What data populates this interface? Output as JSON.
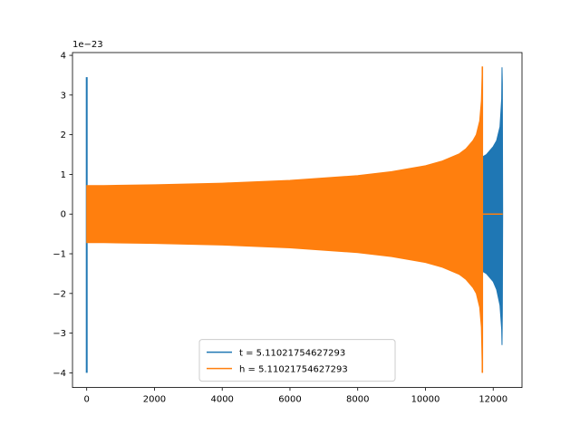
{
  "chart_data": {
    "type": "line",
    "title": "",
    "xlabel": "",
    "ylabel": "",
    "y_offset_text": "1e−23",
    "xlim": [
      -420,
      12850
    ],
    "ylim": [
      -4.37,
      4.07
    ],
    "y_scale_exponent": -23,
    "grid": false,
    "legend_position": "lower center",
    "x_ticks": [
      0,
      2000,
      4000,
      6000,
      8000,
      10000,
      12000
    ],
    "x_tick_labels": [
      "0",
      "2000",
      "4000",
      "6000",
      "8000",
      "10000",
      "12000"
    ],
    "y_ticks": [
      -4,
      -3,
      -2,
      -1,
      0,
      1,
      2,
      3,
      4
    ],
    "y_tick_labels": [
      "−4",
      "−3",
      "−2",
      "−1",
      "0",
      "1",
      "2",
      "3",
      "4"
    ],
    "series": [
      {
        "name": "t = 5.11021754627293",
        "color": "#1f77b4",
        "envelope": {
          "x": [
            0,
            11680,
            11700,
            11800,
            11900,
            12000,
            12100,
            12200,
            12250,
            12260,
            12270,
            12280,
            12290
          ],
          "upper": [
            0.7,
            0.7,
            1.45,
            1.5,
            1.6,
            1.7,
            1.85,
            2.2,
            2.9,
            3.7,
            3.3,
            0,
            0
          ],
          "lower": [
            -0.7,
            -0.7,
            -1.45,
            -1.5,
            -1.6,
            -1.7,
            -1.9,
            -2.3,
            -2.9,
            -3.3,
            -2.5,
            0,
            0
          ]
        },
        "spike": {
          "x": 0,
          "max": 3.45,
          "min": -4.0
        }
      },
      {
        "name": "h = 5.11021754627293",
        "color": "#ff7f0e",
        "envelope": {
          "x": [
            0,
            500,
            2000,
            4000,
            6000,
            8000,
            9000,
            10000,
            10500,
            11000,
            11200,
            11400,
            11500,
            11600,
            11650,
            11680
          ],
          "upper": [
            0.72,
            0.72,
            0.74,
            0.78,
            0.85,
            0.97,
            1.07,
            1.22,
            1.34,
            1.52,
            1.65,
            1.85,
            2.0,
            2.35,
            2.85,
            3.72
          ],
          "lower": [
            -0.72,
            -0.72,
            -0.74,
            -0.78,
            -0.85,
            -0.97,
            -1.07,
            -1.22,
            -1.34,
            -1.52,
            -1.65,
            -1.85,
            -2.0,
            -2.35,
            -2.85,
            -4.0
          ]
        },
        "flat_after": {
          "x": [
            11680,
            12280
          ],
          "y": 0
        }
      }
    ]
  }
}
